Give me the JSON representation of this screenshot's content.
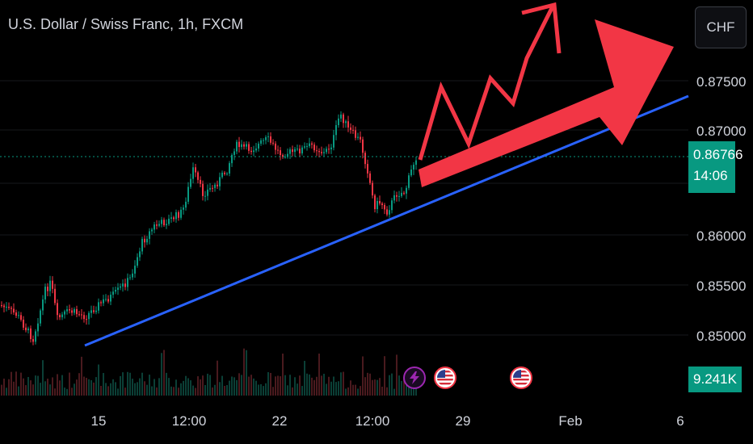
{
  "header": {
    "symbol_title": "U.S. Dollar / Swiss Franc, 1h, FXCM"
  },
  "currency_button": {
    "label": "CHF"
  },
  "price_axis": {
    "ticks": [
      "0.87500",
      "0.87000",
      "0.86000",
      "0.85500",
      "0.85000"
    ],
    "current_price": "0.86766",
    "countdown": "14:06"
  },
  "volume": {
    "label": "9.241K"
  },
  "time_axis": {
    "ticks": [
      "15",
      "12:00",
      "22",
      "12:00",
      "29",
      "Feb",
      "6"
    ]
  },
  "events": [
    {
      "icon": "lightning-icon"
    },
    {
      "icon": "us-flag-icon"
    },
    {
      "icon": "us-flag-icon"
    }
  ],
  "colors": {
    "up": "#089981",
    "down": "#f23645",
    "trendline": "#2962ff",
    "arrow": "#f23645",
    "background": "#000000",
    "text": "#d1d4dc"
  }
}
